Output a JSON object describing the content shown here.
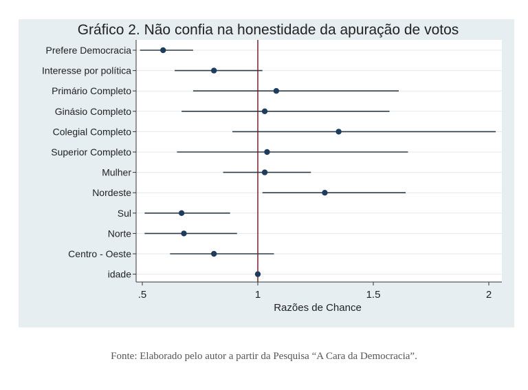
{
  "chart_data": {
    "type": "scatter",
    "subtype": "coefficient-plot",
    "title": "Gráfico 2. Não confia na honestidade da apuração de votos",
    "xlabel": "Razões de Chance",
    "ylabel": "",
    "xlim": [
      0.49,
      2.05
    ],
    "xticks": [
      0.5,
      1,
      1.5,
      2
    ],
    "xtick_labels": [
      ".5",
      "1",
      "1.5",
      "2"
    ],
    "reference_line": 1,
    "grid": true,
    "colors": {
      "panel": "#e6eef1",
      "plot": "#ffffff",
      "point": "#1e3d5c",
      "ci": "#2b3a48",
      "ref": "#7a1f2b",
      "grid": "#e4e8ea"
    },
    "series": [
      {
        "label": "Prefere Democracia",
        "estimate": 0.59,
        "ci": [
          0.49,
          0.72
        ]
      },
      {
        "label": "Interesse por política",
        "estimate": 0.81,
        "ci": [
          0.64,
          1.02
        ]
      },
      {
        "label": "Primário Completo",
        "estimate": 1.08,
        "ci": [
          0.72,
          1.61
        ]
      },
      {
        "label": "Ginásio Completo",
        "estimate": 1.03,
        "ci": [
          0.67,
          1.57
        ]
      },
      {
        "label": "Colegial Completo",
        "estimate": 1.35,
        "ci": [
          0.89,
          2.03
        ]
      },
      {
        "label": "Superior Completo",
        "estimate": 1.04,
        "ci": [
          0.65,
          1.65
        ]
      },
      {
        "label": "Mulher",
        "estimate": 1.03,
        "ci": [
          0.85,
          1.23
        ]
      },
      {
        "label": "Nordeste",
        "estimate": 1.29,
        "ci": [
          1.02,
          1.64
        ]
      },
      {
        "label": "Sul",
        "estimate": 0.67,
        "ci": [
          0.51,
          0.88
        ]
      },
      {
        "label": "Norte",
        "estimate": 0.68,
        "ci": [
          0.51,
          0.91
        ]
      },
      {
        "label": "Centro - Oeste",
        "estimate": 0.81,
        "ci": [
          0.62,
          1.07
        ]
      },
      {
        "label": "idade",
        "estimate": 1.0,
        "ci": [
          0.995,
          1.005
        ]
      }
    ]
  },
  "footer": {
    "source": "Fonte: Elaborado pelo autor a partir da Pesquisa “A Cara da Democracia”."
  }
}
